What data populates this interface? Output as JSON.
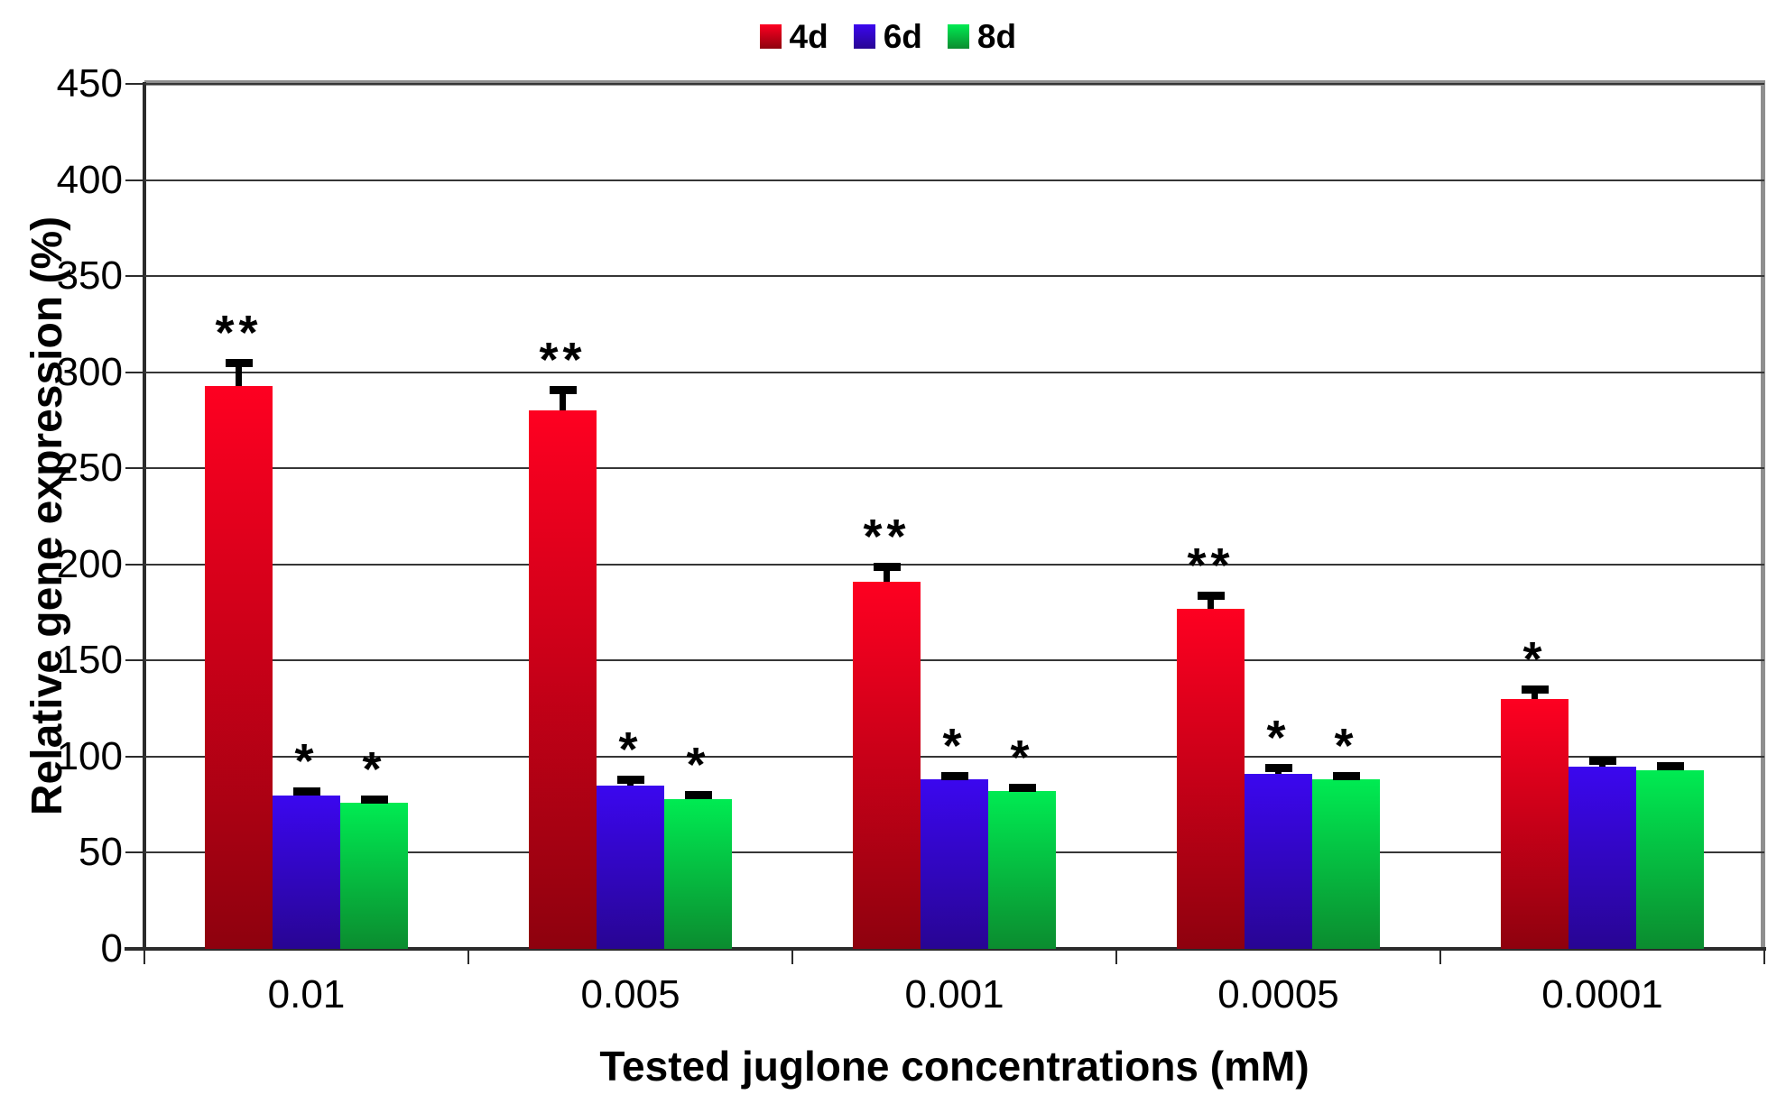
{
  "chart_data": {
    "type": "bar",
    "title": "",
    "xlabel": "Tested juglone concentrations (mM)",
    "ylabel": "Relative gene expression (%)",
    "ylim": [
      0,
      450
    ],
    "ytick_step": 50,
    "yticks": [
      0,
      50,
      100,
      150,
      200,
      250,
      300,
      350,
      400,
      450
    ],
    "categories": [
      "0.01",
      "0.005",
      "0.001",
      "0.0005",
      "0.0001"
    ],
    "grid": true,
    "legend_position": "top",
    "error_bars": true,
    "series": [
      {
        "name": "4d",
        "color_top": "#fe0021",
        "color_bottom": "#8e010e",
        "values": [
          293,
          280,
          191,
          177,
          130
        ],
        "errors": [
          14,
          13,
          10,
          9,
          7
        ],
        "significance": [
          "**",
          "**",
          "**",
          "**",
          "*"
        ]
      },
      {
        "name": "6d",
        "color_top": "#3b07ef",
        "color_bottom": "#280593",
        "values": [
          80,
          85,
          88,
          91,
          95
        ],
        "errors": [
          4,
          5,
          4,
          5,
          5
        ],
        "significance": [
          "*",
          "*",
          "*",
          "*",
          ""
        ]
      },
      {
        "name": "8d",
        "color_top": "#00eb52",
        "color_bottom": "#0b8c2f",
        "values": [
          76,
          78,
          82,
          88,
          93
        ],
        "errors": [
          4,
          4,
          4,
          4,
          4
        ],
        "significance": [
          "*",
          "*",
          "*",
          "*",
          ""
        ]
      }
    ],
    "frame_colors": {
      "top_right_border": "#8f8f8f",
      "axis": "#2b2b2b",
      "gridline": "#363636"
    }
  }
}
